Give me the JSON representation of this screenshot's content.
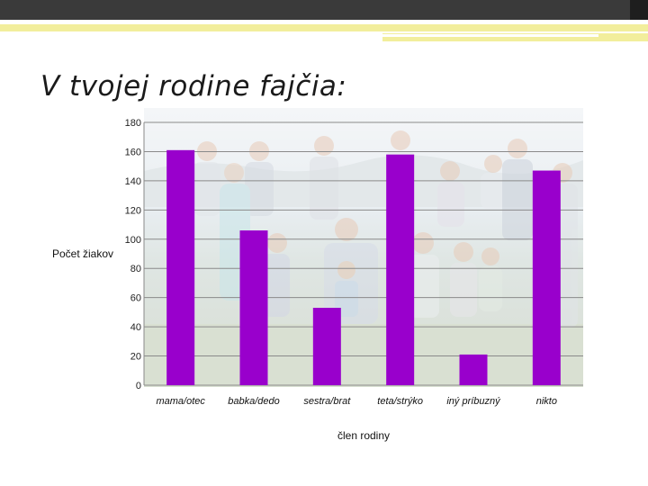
{
  "slide": {
    "title": "V tvojej rodine fajčia:"
  },
  "chart_data": {
    "type": "bar",
    "title": "",
    "xlabel": "člen rodiny",
    "ylabel": "Počet žiakov",
    "categories": [
      "mama/otec",
      "babka/dedo",
      "sestra/brat",
      "teta/strýko",
      "iný príbuzný",
      "nikto"
    ],
    "series": [
      {
        "values": [
          161,
          106,
          53,
          158,
          21,
          147
        ],
        "color": "#9900cc"
      }
    ],
    "ylim": [
      0,
      180
    ],
    "yticks": [
      0,
      20,
      40,
      60,
      80,
      100,
      120,
      140,
      160,
      180
    ],
    "grid": true,
    "legend": "none",
    "background": "photo"
  }
}
